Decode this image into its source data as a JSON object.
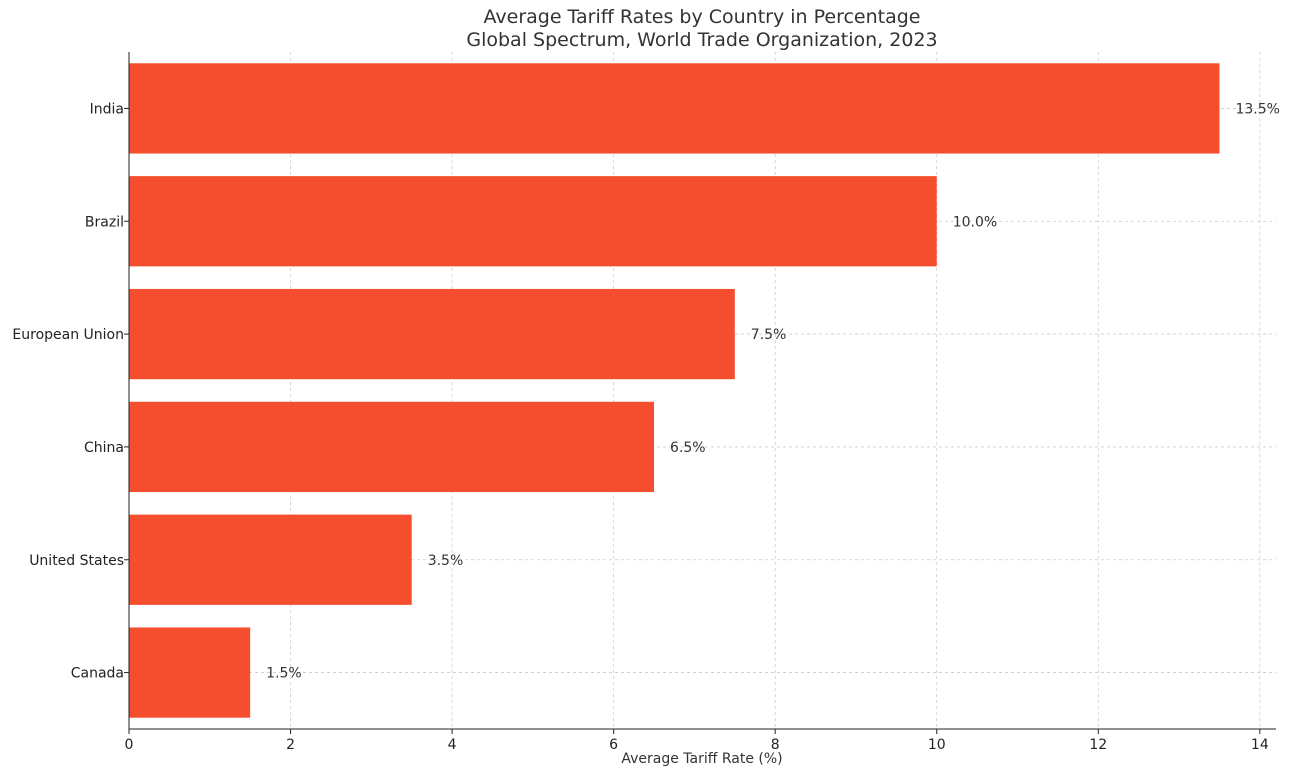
{
  "chart_data": {
    "type": "bar",
    "orientation": "horizontal",
    "title": "Average Tariff Rates by Country in Percentage",
    "subtitle": "Global Spectrum, World Trade Organization, 2023",
    "xlabel": "Average Tariff Rate (%)",
    "ylabel": "",
    "categories": [
      "India",
      "Brazil",
      "European Union",
      "China",
      "United States",
      "Canada"
    ],
    "values": [
      13.5,
      10.0,
      7.5,
      6.5,
      3.5,
      1.5
    ],
    "data_labels": [
      "13.5%",
      "10.0%",
      "7.5%",
      "6.5%",
      "3.5%",
      "1.5%"
    ],
    "xlim": [
      0,
      14.2
    ],
    "xticks": [
      0,
      2,
      4,
      6,
      8,
      10,
      12,
      14
    ],
    "xtick_labels": [
      "0",
      "2",
      "4",
      "6",
      "8",
      "10",
      "12",
      "14"
    ],
    "grid": true,
    "bar_color": "#f44e2f"
  }
}
